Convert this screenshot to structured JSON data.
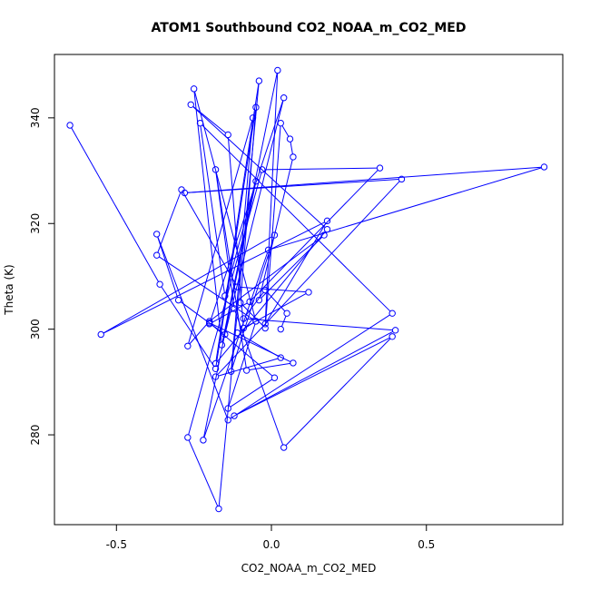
{
  "chart_data": {
    "type": "line",
    "title": "ATOM1 Southbound CO2_NOAA_m_CO2_MED",
    "xlabel": "CO2_NOAA_m_CO2_MED",
    "ylabel": "Theta (K)",
    "xlim": [
      -0.7,
      0.94
    ],
    "ylim": [
      263,
      352
    ],
    "x_ticks": [
      -0.5,
      0.0,
      0.5
    ],
    "x_tick_labels": [
      "-0.5",
      "0.0",
      "0.5"
    ],
    "y_ticks": [
      280,
      300,
      320,
      340
    ],
    "y_tick_labels": [
      "280",
      "300",
      "320",
      "340"
    ],
    "grid": false,
    "legend": "none",
    "series": [
      {
        "color": "#0000ff",
        "marker": "open-circle",
        "points": [
          [
            -0.65,
            338.6
          ],
          [
            -0.36,
            308.5
          ],
          [
            -0.18,
            292.5
          ],
          [
            -0.05,
            342.0
          ],
          [
            -0.1,
            305.0
          ],
          [
            -0.02,
            300.2
          ],
          [
            0.03,
            339.0
          ],
          [
            0.06,
            336.0
          ],
          [
            0.07,
            332.6
          ],
          [
            -0.04,
            305.5
          ],
          [
            0.17,
            317.8
          ],
          [
            -0.2,
            301.5
          ],
          [
            -0.27,
            296.8
          ],
          [
            -0.06,
            340.0
          ],
          [
            -0.13,
            292.0
          ],
          [
            0.01,
            317.8
          ],
          [
            -0.55,
            299.0
          ],
          [
            0.18,
            320.5
          ],
          [
            -0.02,
            301.0
          ],
          [
            0.02,
            349.0
          ],
          [
            -0.16,
            297.0
          ],
          [
            -0.25,
            345.5
          ],
          [
            -0.05,
            301.5
          ],
          [
            -0.37,
            314.0
          ],
          [
            -0.29,
            326.4
          ],
          [
            -0.11,
            308.0
          ],
          [
            0.12,
            307.0
          ],
          [
            -0.09,
            300.2
          ],
          [
            -0.14,
            336.8
          ],
          [
            -0.26,
            342.5
          ],
          [
            0.18,
            318.9
          ],
          [
            -0.18,
            293.5
          ],
          [
            -0.04,
            347.0
          ],
          [
            -0.17,
            266.0
          ],
          [
            -0.27,
            279.5
          ],
          [
            -0.03,
            330.2
          ],
          [
            0.35,
            330.5
          ],
          [
            -0.07,
            305.2
          ],
          [
            -0.2,
            301.0
          ],
          [
            0.04,
            343.8
          ],
          [
            -0.15,
            299.0
          ],
          [
            -0.3,
            305.5
          ],
          [
            -0.37,
            318.0
          ],
          [
            -0.14,
            282.8
          ],
          [
            0.39,
            303.0
          ],
          [
            -0.23,
            339.0
          ],
          [
            -0.15,
            306.3
          ],
          [
            -0.05,
            328.0
          ],
          [
            -0.22,
            279.0
          ],
          [
            -0.01,
            315.0
          ],
          [
            0.88,
            330.7
          ],
          [
            -0.28,
            325.8
          ],
          [
            0.42,
            328.4
          ],
          [
            -0.18,
            291.0
          ],
          [
            0.03,
            294.6
          ],
          [
            -0.11,
            299.3
          ],
          [
            -0.05,
            301.5
          ],
          [
            -0.14,
            285.0
          ],
          [
            0.01,
            290.8
          ],
          [
            -0.2,
            301.2
          ],
          [
            0.07,
            293.6
          ],
          [
            -0.08,
            292.2
          ],
          [
            -0.18,
            330.2
          ],
          [
            -0.12,
            303.9
          ],
          [
            0.04,
            277.6
          ],
          [
            0.39,
            298.6
          ],
          [
            -0.12,
            283.6
          ],
          [
            0.4,
            299.8
          ],
          [
            -0.09,
            302.0
          ],
          [
            -0.02,
            307.4
          ],
          [
            0.05,
            303.0
          ],
          [
            0.03,
            300.0
          ]
        ]
      }
    ]
  }
}
